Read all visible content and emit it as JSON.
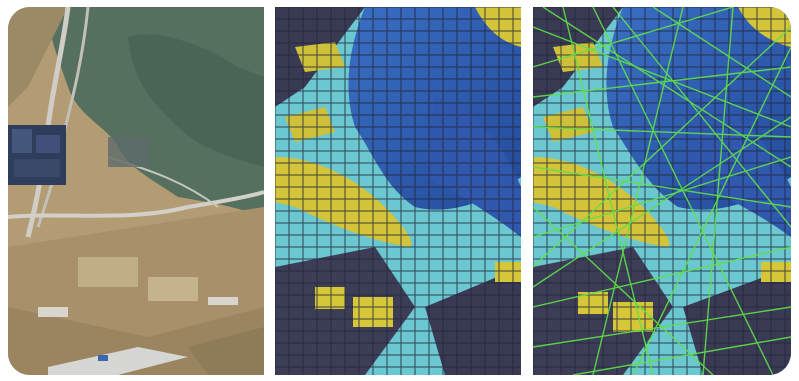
{
  "figure": {
    "panels": [
      {
        "id": "aerial",
        "kind": "aerial-photo",
        "palette": {
          "ground": "#b9a27a",
          "water": "#4f6a5e",
          "road": "#c9c7c0",
          "roof": "#3a4a66"
        }
      },
      {
        "id": "voxel",
        "kind": "voxel-grid",
        "palette": {
          "deep": "#2f5fb8",
          "mid": "#4aa3d8",
          "cyan": "#6fd2d6",
          "yellow": "#d9c93a",
          "dark": "#3a3a54"
        }
      },
      {
        "id": "voxel-network",
        "kind": "voxel-grid-with-paths",
        "palette": {
          "deep": "#2f5fb8",
          "mid": "#4aa3d8",
          "cyan": "#6fd2d6",
          "yellow": "#d9c93a",
          "dark": "#3a3a54",
          "path": "#5fe04a"
        }
      }
    ]
  }
}
